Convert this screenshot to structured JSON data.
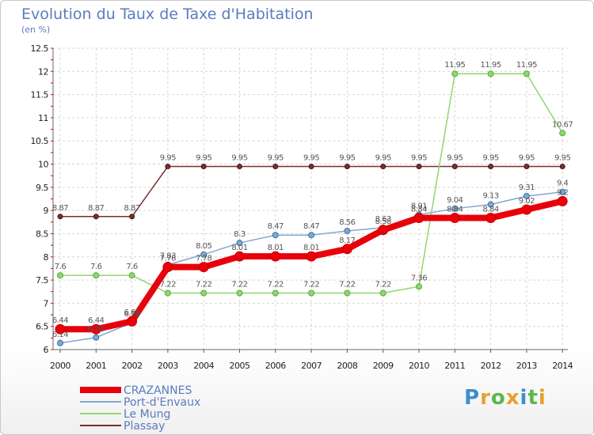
{
  "chart_data": {
    "type": "line",
    "title": "Evolution du Taux de Taxe d'Habitation",
    "ylabel": "(en %)",
    "xlabel": "",
    "ylim": [
      6,
      12.5
    ],
    "yticks": [
      6,
      6.5,
      7,
      7.5,
      8,
      8.5,
      9,
      9.5,
      10,
      10.5,
      11,
      11.5,
      12,
      12.5
    ],
    "categories": [
      "2000",
      "2001",
      "2002",
      "2003",
      "2004",
      "2005",
      "2006",
      "2007",
      "2008",
      "2009",
      "2010",
      "2011",
      "2012",
      "2013",
      "2014"
    ],
    "series": [
      {
        "name": "CRAZANNES",
        "color": "#e8000b",
        "values": [
          6.44,
          6.44,
          6.61,
          7.78,
          7.78,
          8.01,
          8.01,
          8.01,
          8.17,
          8.58,
          8.84,
          8.84,
          8.84,
          9.02,
          9.2
        ],
        "labels": [
          "6.44",
          "6.44",
          "6.61",
          "7.78",
          "7.78",
          "8.01",
          "8.01",
          "8.01",
          "8.17",
          "8.58",
          "8.84",
          "8.84",
          "8.84",
          "9.02",
          "9.2"
        ]
      },
      {
        "name": "Port-d'Envaux",
        "color": "#7fa8d0",
        "values": [
          6.14,
          6.26,
          6.58,
          7.83,
          8.05,
          8.3,
          8.47,
          8.47,
          8.56,
          8.63,
          8.91,
          9.04,
          9.13,
          9.31,
          9.4
        ],
        "labels": [
          "6.14",
          "6.26",
          "6.58",
          "7.83",
          "8.05",
          "8.3",
          "8.47",
          "8.47",
          "8.56",
          "8.63",
          "8.91",
          "9.04",
          "9.13",
          "9.31",
          "9.4"
        ]
      },
      {
        "name": "Le Mung",
        "color": "#8ed86c",
        "values": [
          7.6,
          7.6,
          7.6,
          7.22,
          7.22,
          7.22,
          7.22,
          7.22,
          7.22,
          7.22,
          7.36,
          11.95,
          11.95,
          11.95,
          10.67
        ],
        "labels": [
          "7.6",
          "7.6",
          "7.6",
          "7.22",
          "7.22",
          "7.22",
          "7.22",
          "7.22",
          "7.22",
          "7.22",
          "7.36",
          "11.95",
          "11.95",
          "11.95",
          "10.67"
        ]
      },
      {
        "name": "Plassay",
        "color": "#7a2e2e",
        "values": [
          8.87,
          8.87,
          8.87,
          9.95,
          9.95,
          9.95,
          9.95,
          9.95,
          9.95,
          9.95,
          9.95,
          9.95,
          9.95,
          9.95,
          9.95
        ],
        "labels": [
          "8.87",
          "8.87",
          "8.87",
          "9.95",
          "9.95",
          "9.95",
          "9.95",
          "9.95",
          "9.95",
          "9.95",
          "9.95",
          "9.95",
          "9.95",
          "9.95",
          "9.95"
        ]
      }
    ]
  },
  "logo": {
    "text": "Proxiti",
    "letters": [
      {
        "ch": "P",
        "color": "#3a8fd0"
      },
      {
        "ch": "r",
        "color": "#e8a030"
      },
      {
        "ch": "o",
        "color": "#5bb84a"
      },
      {
        "ch": "x",
        "color": "#e8a030"
      },
      {
        "ch": "i",
        "color": "#3a8fd0"
      },
      {
        "ch": "t",
        "color": "#5bb84a"
      },
      {
        "ch": "i",
        "color": "#e8a030"
      }
    ]
  }
}
